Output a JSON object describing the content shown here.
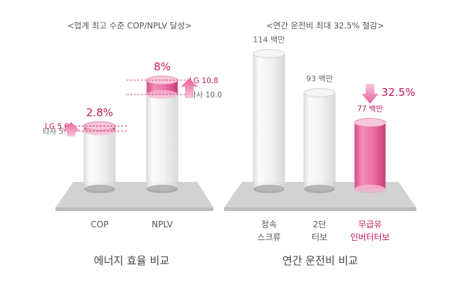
{
  "colors": {
    "accent": "#c2185b",
    "accent_fill": "#e8609b",
    "glass": "#eeeeee",
    "platform": "#c8c8c8",
    "text": "#555555"
  },
  "icons": {
    "arrow_up": "arrow-up-icon",
    "arrow_down": "arrow-down-icon"
  },
  "chart_data": [
    {
      "type": "bar",
      "title": "<업계 최고 수준 COP/NPLV 달성>",
      "caption": "에너지 효율 비교",
      "categories": [
        "COP",
        "NPLV"
      ],
      "series": [
        {
          "name": "LG",
          "values": [
            5.88,
            10.8
          ]
        },
        {
          "name": "타사",
          "values": [
            5.72,
            10.0
          ]
        }
      ],
      "increase_labels": [
        "2.8%",
        "8%"
      ],
      "value_labels": {
        "lg": [
          "LG 5.88",
          "LG 10.8"
        ],
        "other": [
          "타사 5.72",
          "타사 10.0"
        ]
      }
    },
    {
      "type": "bar",
      "title": "<연간 운전비 최대 32.5% 절감>",
      "caption": "연간 운전비 비교",
      "categories": [
        [
          "정속",
          "스크류"
        ],
        [
          "2단",
          "터보"
        ],
        [
          "무급유",
          "인버터터보"
        ]
      ],
      "values": [
        114,
        93,
        77
      ],
      "value_labels": [
        "114 백만",
        "93 백만",
        "77 백만"
      ],
      "highlight_index": 2,
      "reduction_label": "32.5%"
    }
  ]
}
